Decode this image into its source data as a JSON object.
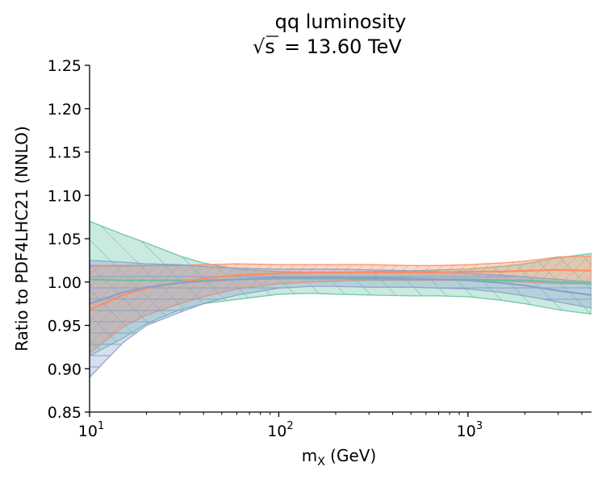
{
  "chart_data": {
    "type": "area",
    "title": "qq luminosity",
    "subtitle_prefix": "√s",
    "subtitle_value": "= 13.60 TeV",
    "xlabel_main": "m",
    "xlabel_sub": "X",
    "xlabel_unit": " (GeV)",
    "ylabel": "Ratio to PDF4LHC21 (NNLO)",
    "xscale": "log",
    "xlim": [
      10,
      4500
    ],
    "ylim": [
      0.85,
      1.25
    ],
    "yticks": [
      {
        "value": 0.85,
        "label": "0.85"
      },
      {
        "value": 0.9,
        "label": "0.90"
      },
      {
        "value": 0.95,
        "label": "0.95"
      },
      {
        "value": 1.0,
        "label": "1.00"
      },
      {
        "value": 1.05,
        "label": "1.05"
      },
      {
        "value": 1.1,
        "label": "1.10"
      },
      {
        "value": 1.15,
        "label": "1.15"
      },
      {
        "value": 1.2,
        "label": "1.20"
      },
      {
        "value": 1.25,
        "label": "1.25"
      }
    ],
    "xticks": [
      {
        "value": 10,
        "base": "10",
        "exp": "1"
      },
      {
        "value": 100,
        "base": "10",
        "exp": "2"
      },
      {
        "value": 1000,
        "base": "10",
        "exp": "3"
      }
    ],
    "series": [
      {
        "name": "green",
        "color": "#66c2a5",
        "x": [
          10,
          15,
          20,
          30,
          40,
          60,
          100,
          150,
          200,
          300,
          500,
          700,
          1000,
          1500,
          2000,
          3000,
          4500
        ],
        "central": [
          1.003,
          1.002,
          1.002,
          1.002,
          1.002,
          1.003,
          1.004,
          1.004,
          1.004,
          1.003,
          1.003,
          1.003,
          1.003,
          1.002,
          1.002,
          1.0,
          0.998
        ],
        "upper": [
          1.07,
          1.055,
          1.045,
          1.03,
          1.022,
          1.015,
          1.012,
          1.011,
          1.011,
          1.012,
          1.013,
          1.014,
          1.015,
          1.018,
          1.021,
          1.028,
          1.033
        ],
        "lower": [
          0.915,
          0.935,
          0.952,
          0.968,
          0.975,
          0.98,
          0.986,
          0.987,
          0.986,
          0.985,
          0.984,
          0.984,
          0.983,
          0.979,
          0.975,
          0.968,
          0.963
        ]
      },
      {
        "name": "orange",
        "color": "#fc8d62",
        "x": [
          10,
          15,
          20,
          30,
          40,
          60,
          100,
          150,
          200,
          300,
          500,
          700,
          1000,
          1500,
          2000,
          3000,
          4500
        ],
        "central": [
          0.968,
          0.985,
          0.993,
          1.0,
          1.004,
          1.008,
          1.01,
          1.011,
          1.011,
          1.011,
          1.011,
          1.011,
          1.012,
          1.012,
          1.013,
          1.014,
          1.013
        ],
        "upper": [
          1.018,
          1.018,
          1.019,
          1.019,
          1.02,
          1.021,
          1.02,
          1.02,
          1.02,
          1.02,
          1.019,
          1.019,
          1.02,
          1.022,
          1.024,
          1.029,
          1.03
        ],
        "lower": [
          0.918,
          0.948,
          0.962,
          0.975,
          0.983,
          0.992,
          0.998,
          1.0,
          1.001,
          1.002,
          1.002,
          1.002,
          1.002,
          1.001,
          1.0,
          0.998,
          0.998
        ]
      },
      {
        "name": "blue",
        "color": "#8da0cb",
        "x": [
          10,
          15,
          20,
          30,
          40,
          60,
          100,
          150,
          200,
          300,
          500,
          700,
          1000,
          1500,
          2000,
          3000,
          4500
        ],
        "central": [
          0.975,
          0.988,
          0.994,
          0.999,
          1.001,
          1.003,
          1.005,
          1.005,
          1.005,
          1.005,
          1.004,
          1.003,
          1.002,
          0.999,
          0.996,
          0.99,
          0.985
        ],
        "upper": [
          1.025,
          1.023,
          1.021,
          1.02,
          1.018,
          1.016,
          1.015,
          1.015,
          1.015,
          1.014,
          1.013,
          1.012,
          1.01,
          1.008,
          1.006,
          1.003,
          1.0
        ],
        "lower": [
          0.89,
          0.93,
          0.95,
          0.965,
          0.975,
          0.985,
          0.993,
          0.995,
          0.995,
          0.994,
          0.994,
          0.993,
          0.992,
          0.988,
          0.984,
          0.977,
          0.97
        ]
      }
    ]
  }
}
